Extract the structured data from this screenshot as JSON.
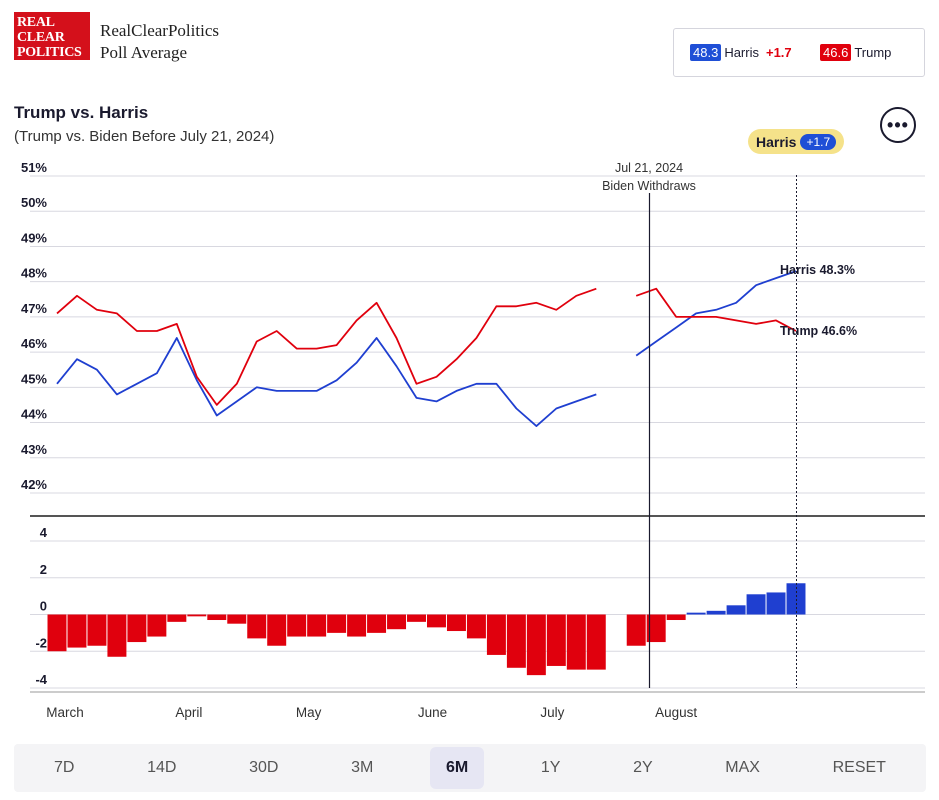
{
  "header": {
    "logo_lines": [
      "REAL",
      "CLEAR",
      "POLITICS"
    ],
    "brand_line1": "RealClearPolitics",
    "brand_line2": "Poll Average"
  },
  "legend": {
    "harris_value": "48.3",
    "harris_name": "Harris",
    "harris_spread": "+1.7",
    "trump_value": "46.6",
    "trump_name": "Trump"
  },
  "title": "Trump vs. Harris",
  "subtitle": "(Trump vs. Biden Before July 21, 2024)",
  "lead_pill": {
    "name": "Harris",
    "value": "+1.7"
  },
  "more_icon": "more-options-icon",
  "event": {
    "date": "Jul 21, 2024",
    "label": "Biden Withdraws"
  },
  "end_labels": {
    "harris": "Harris 48.3%",
    "trump": "Trump 46.6%"
  },
  "colors": {
    "dem": "#1f3fd0",
    "rep": "#e0000d",
    "grid": "#d8d8e0",
    "text": "#1a1a2e"
  },
  "tabs": [
    "7D",
    "14D",
    "30D",
    "3M",
    "6M",
    "1Y",
    "2Y",
    "MAX",
    "RESET"
  ],
  "active_tab": "6M",
  "chart_data": {
    "type": "line",
    "ylim": [
      42,
      51
    ],
    "yticks": [
      "51%",
      "50%",
      "49%",
      "48%",
      "47%",
      "46%",
      "45%",
      "44%",
      "43%",
      "42%"
    ],
    "x_month_labels": [
      "March",
      "April",
      "May",
      "June",
      "July",
      "August"
    ],
    "x": [
      "Mar 1",
      "Mar 6",
      "Mar 11",
      "Mar 16",
      "Mar 21",
      "Mar 26",
      "Mar 31",
      "Apr 5",
      "Apr 10",
      "Apr 15",
      "Apr 20",
      "Apr 25",
      "Apr 30",
      "May 5",
      "May 10",
      "May 15",
      "May 20",
      "May 25",
      "May 30",
      "Jun 4",
      "Jun 9",
      "Jun 14",
      "Jun 19",
      "Jun 24",
      "Jun 29",
      "Jul 4",
      "Jul 9",
      "Jul 14",
      "Jul 19",
      "Jul 21",
      "Jul 26",
      "Jul 31",
      "Aug 5",
      "Aug 10",
      "Aug 15",
      "Aug 20",
      "Aug 25",
      "Aug 29"
    ],
    "series": [
      {
        "name": "Harris",
        "values": [
          45.1,
          45.8,
          45.5,
          44.8,
          45.1,
          45.4,
          46.4,
          45.2,
          44.2,
          44.6,
          45.0,
          44.9,
          44.9,
          44.9,
          45.2,
          45.7,
          46.4,
          45.6,
          44.7,
          44.6,
          44.9,
          45.1,
          45.1,
          44.4,
          43.9,
          44.4,
          44.6,
          44.8,
          null,
          45.9,
          46.3,
          46.7,
          47.1,
          47.2,
          47.4,
          47.9,
          48.1,
          48.3
        ]
      },
      {
        "name": "Trump",
        "values": [
          47.1,
          47.6,
          47.2,
          47.1,
          46.6,
          46.6,
          46.8,
          45.3,
          44.5,
          45.1,
          46.3,
          46.6,
          46.1,
          46.1,
          46.2,
          46.9,
          47.4,
          46.4,
          45.1,
          45.3,
          45.8,
          46.4,
          47.3,
          47.3,
          47.4,
          47.2,
          47.6,
          47.8,
          null,
          47.6,
          47.8,
          47.0,
          47.0,
          47.0,
          46.9,
          46.8,
          46.9,
          46.6
        ]
      }
    ],
    "spread": {
      "ylim": [
        -4,
        4
      ],
      "yticks": [
        "4",
        "2",
        "0",
        "-2",
        "-4"
      ],
      "values": [
        -2.0,
        -1.8,
        -1.7,
        -2.3,
        -1.5,
        -1.2,
        -0.4,
        -0.1,
        -0.3,
        -0.5,
        -1.3,
        -1.7,
        -1.2,
        -1.2,
        -1.0,
        -1.2,
        -1.0,
        -0.8,
        -0.4,
        -0.7,
        -0.9,
        -1.3,
        -2.2,
        -2.9,
        -3.3,
        -2.8,
        -3.0,
        -3.0,
        null,
        -1.7,
        -1.5,
        -0.3,
        0.1,
        0.2,
        0.5,
        1.1,
        1.2,
        1.7
      ]
    }
  }
}
